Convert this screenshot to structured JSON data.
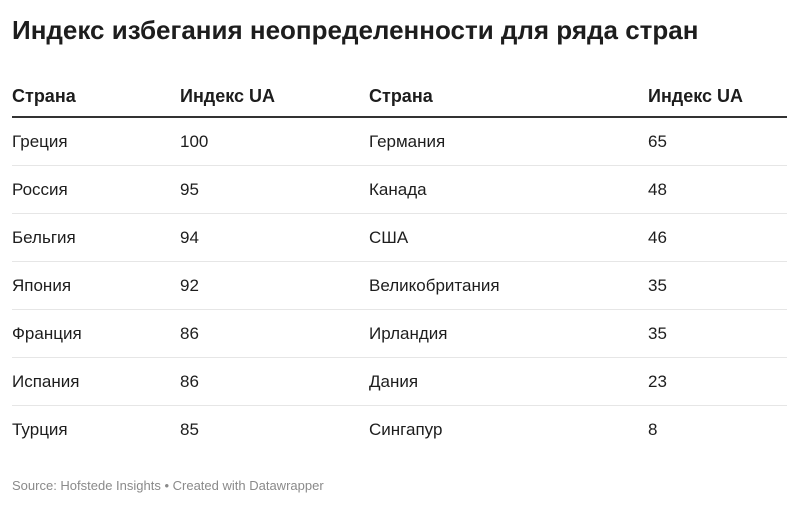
{
  "chart_data": {
    "type": "table",
    "title": "Индекс избегания неопределенности для ряда стран",
    "columns": [
      "Страна",
      "Индекс UA",
      "Страна",
      "Индекс UA"
    ],
    "rows": [
      [
        "Греция",
        "100",
        "Германия",
        "65"
      ],
      [
        "Россия",
        "95",
        "Канада",
        "48"
      ],
      [
        "Бельгия",
        "94",
        "США",
        "46"
      ],
      [
        "Япония",
        "92",
        "Великобритания",
        "35"
      ],
      [
        "Франция",
        "86",
        "Ирландия",
        "35"
      ],
      [
        "Испания",
        "86",
        "Дания",
        "23"
      ],
      [
        "Турция",
        "85",
        "Сингапур",
        "8"
      ]
    ],
    "footer": "Source: Hofstede Insights • Created with Datawrapper"
  }
}
